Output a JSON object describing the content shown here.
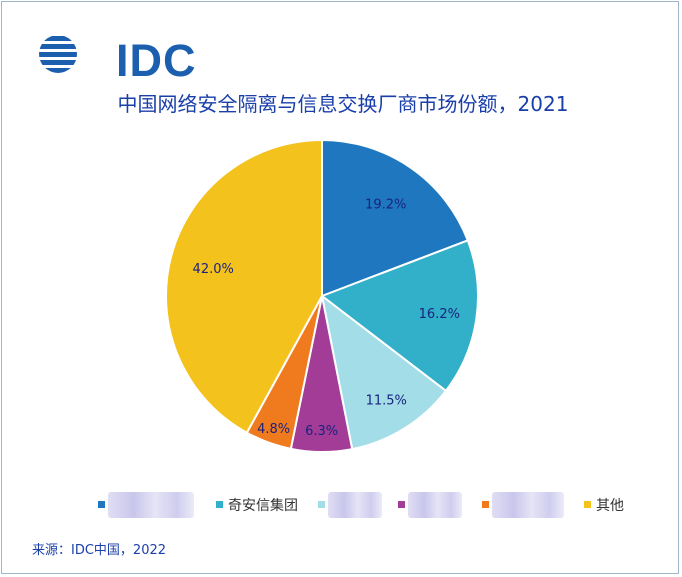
{
  "logo": {
    "text": "IDC",
    "color": "#1b5fae"
  },
  "title": "中国网络安全隔离与信息交换厂商市场份额，2021",
  "source": "来源：IDC中国，2022",
  "colors": {
    "slice1": "#1f78bf",
    "slice2": "#33b0c9",
    "slice3": "#a3dde8",
    "slice4": "#a23c97",
    "slice5": "#f07b1e",
    "slice6": "#f4c21c",
    "label_text": "#1a237e"
  },
  "legend": {
    "items": [
      {
        "label": "",
        "obscured": true,
        "color": "#1f78bf"
      },
      {
        "label": "奇安信集团",
        "obscured": false,
        "color": "#33b0c9"
      },
      {
        "label": "",
        "obscured": true,
        "color": "#a3dde8"
      },
      {
        "label": "",
        "obscured": true,
        "color": "#a23c97"
      },
      {
        "label": "",
        "obscured": true,
        "color": "#f07b1e"
      },
      {
        "label": "其他",
        "obscured": false,
        "color": "#f4c21c"
      }
    ]
  },
  "chart_data": {
    "type": "pie",
    "title": "中国网络安全隔离与信息交换厂商市场份额，2021",
    "start_angle": "12 o'clock, clockwise",
    "slices": [
      {
        "name": "",
        "value": 19.2,
        "label": "19.2%",
        "color": "#1f78bf"
      },
      {
        "name": "奇安信集团",
        "value": 16.2,
        "label": "16.2%",
        "color": "#33b0c9"
      },
      {
        "name": "",
        "value": 11.5,
        "label": "11.5%",
        "color": "#a3dde8"
      },
      {
        "name": "",
        "value": 6.3,
        "label": "6.3%",
        "color": "#a23c97"
      },
      {
        "name": "",
        "value": 4.8,
        "label": "4.8%",
        "color": "#f07b1e"
      },
      {
        "name": "其他",
        "value": 42.0,
        "label": "42.0%",
        "color": "#f4c21c"
      }
    ]
  }
}
